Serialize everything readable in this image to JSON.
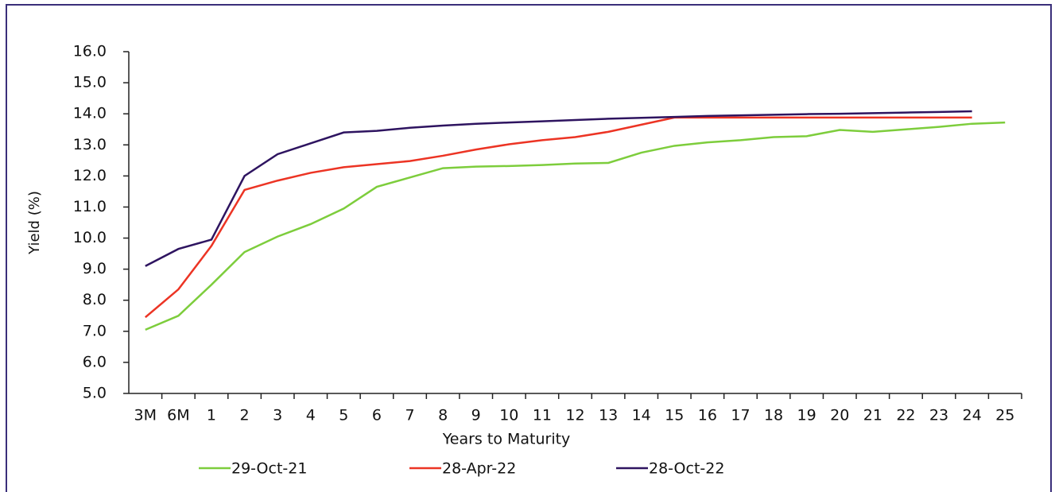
{
  "chart_data": {
    "type": "line",
    "x_label": "Years to Maturity",
    "y_label": "Yield (%)",
    "categories": [
      "3M",
      "6M",
      "1",
      "2",
      "3",
      "4",
      "5",
      "6",
      "7",
      "8",
      "9",
      "10",
      "11",
      "12",
      "13",
      "14",
      "15",
      "16",
      "17",
      "18",
      "19",
      "20",
      "21",
      "22",
      "23",
      "24",
      "25"
    ],
    "series": [
      {
        "name": "29-Oct-21",
        "color": "#7dcd3c",
        "values": [
          7.05,
          7.5,
          8.5,
          9.55,
          10.05,
          10.45,
          10.95,
          11.65,
          11.95,
          12.25,
          12.3,
          12.32,
          12.35,
          12.4,
          12.42,
          12.75,
          12.97,
          13.08,
          13.15,
          13.25,
          13.28,
          13.48,
          13.42,
          13.5,
          13.58,
          13.68,
          13.72
        ]
      },
      {
        "name": "28-Apr-22",
        "color": "#ec3424",
        "values": [
          7.45,
          8.35,
          9.75,
          11.55,
          11.85,
          12.1,
          12.28,
          12.38,
          12.48,
          12.65,
          12.85,
          13.02,
          13.15,
          13.25,
          13.42,
          13.65,
          13.88,
          13.88,
          13.88,
          13.88,
          13.88,
          13.88,
          13.88,
          13.88,
          13.88,
          13.88,
          null
        ]
      },
      {
        "name": "28-Oct-22",
        "color": "#2e1460",
        "values": [
          9.1,
          9.65,
          9.95,
          12.0,
          12.7,
          13.05,
          13.4,
          13.45,
          13.55,
          13.62,
          13.68,
          13.72,
          13.76,
          13.8,
          13.84,
          13.87,
          13.9,
          13.93,
          13.95,
          13.97,
          13.99,
          14.0,
          14.02,
          14.04,
          14.06,
          14.08,
          null
        ]
      }
    ],
    "ylim": [
      5,
      16
    ],
    "yticks": [
      {
        "value": 5,
        "label": "5.0"
      },
      {
        "value": 6,
        "label": "6.0"
      },
      {
        "value": 7,
        "label": "7.0"
      },
      {
        "value": 8,
        "label": "8.0"
      },
      {
        "value": 9,
        "label": "9.0"
      },
      {
        "value": 10,
        "label": "10.0"
      },
      {
        "value": 11,
        "label": "11.0"
      },
      {
        "value": 12,
        "label": "12.0"
      },
      {
        "value": 13,
        "label": "13.0"
      },
      {
        "value": 14,
        "label": "14.0"
      },
      {
        "value": 15,
        "label": "15.0"
      },
      {
        "value": 16,
        "label": "16.0"
      }
    ],
    "grid": false
  }
}
